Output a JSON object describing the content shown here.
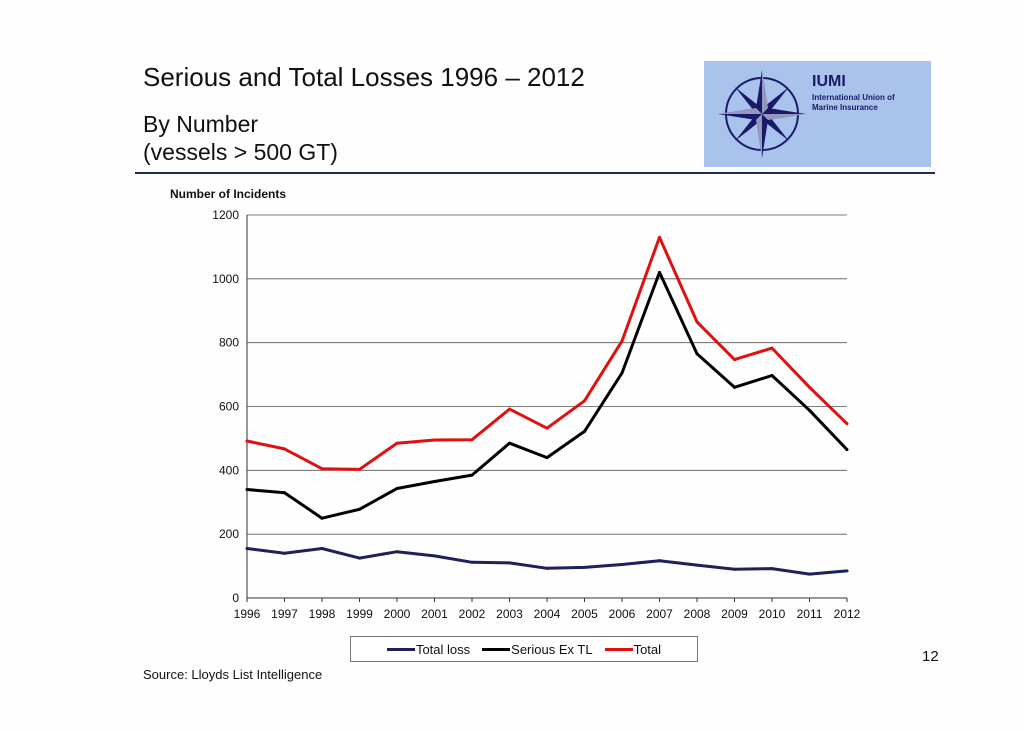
{
  "header": {
    "title": "Serious and Total Losses 1996 – 2012",
    "subtitle_line1": "By Number",
    "subtitle_line2": "(vessels > 500 GT)"
  },
  "logo": {
    "brand": "IUMI",
    "org_line1": "International Union of",
    "org_line2": "Marine Insurance",
    "icon": "compass-rose-icon",
    "background_color": "#a9c3ec"
  },
  "chart_data": {
    "type": "line",
    "ylabel": "Number of Incidents",
    "xlabel": "",
    "ylim": [
      0,
      1200
    ],
    "yticks": [
      0,
      200,
      400,
      600,
      800,
      1000,
      1200
    ],
    "grid": true,
    "legend_position": "bottom",
    "categories": [
      "1996",
      "1997",
      "1998",
      "1999",
      "2000",
      "2001",
      "2002",
      "2003",
      "2004",
      "2005",
      "2006",
      "2007",
      "2008",
      "2009",
      "2010",
      "2011",
      "2012"
    ],
    "series": [
      {
        "name": "Total loss",
        "color": "#1f1f5a",
        "values": [
          155,
          140,
          155,
          125,
          145,
          132,
          112,
          110,
          93,
          96,
          105,
          117,
          103,
          90,
          92,
          75,
          85
        ]
      },
      {
        "name": "Serious Ex TL",
        "color": "#000000",
        "values": [
          340,
          330,
          250,
          278,
          343,
          365,
          385,
          485,
          440,
          522,
          705,
          1020,
          765,
          660,
          697,
          588,
          465
        ]
      },
      {
        "name": "Total",
        "color": "#e01010",
        "values": [
          492,
          467,
          405,
          403,
          485,
          495,
          496,
          592,
          532,
          618,
          805,
          1130,
          865,
          747,
          783,
          660,
          546
        ]
      }
    ]
  },
  "footer": {
    "source": "Source: Lloyds List Intelligence",
    "page_number": "12"
  }
}
